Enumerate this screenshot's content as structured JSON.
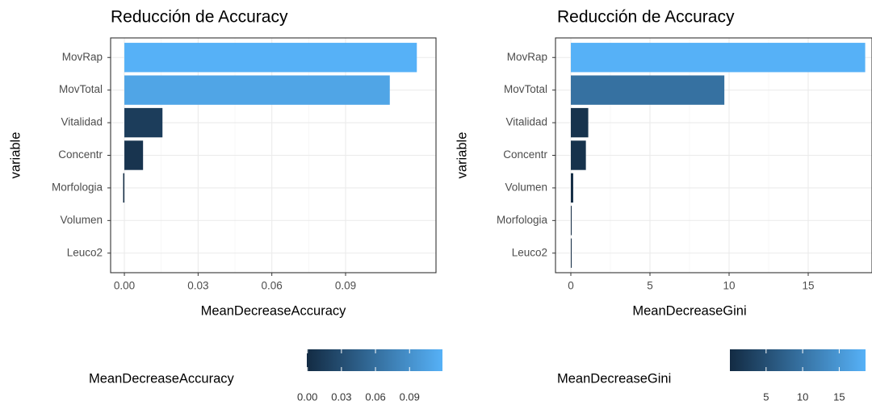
{
  "chart_data": [
    {
      "type": "bar",
      "orientation": "horizontal",
      "title": "Reducción de Accuracy",
      "y_label": "variable",
      "x_label": "MeanDecreaseAccuracy",
      "categories": [
        "MovRap",
        "MovTotal",
        "Vitalidad",
        "Concentr",
        "Morfologia",
        "Volumen",
        "Leuco2"
      ],
      "values": [
        0.119,
        0.108,
        0.0155,
        0.0076,
        -0.0005,
        0,
        0
      ],
      "colorscale": [
        "#132B43",
        "#56B1F7"
      ],
      "xlim": [
        -0.0056,
        0.1268
      ],
      "xticks": [
        {
          "value": 0,
          "label": "0.00"
        },
        0.03,
        0.06,
        0.09
      ],
      "grid": true,
      "legend_title": "MeanDecreaseAccuracy",
      "legend_ticks": [
        {
          "value": 0,
          "label": "0.00"
        },
        0.03,
        0.06,
        0.09
      ]
    },
    {
      "type": "bar",
      "orientation": "horizontal",
      "title": "Reducción de Accuracy",
      "y_label": "variable",
      "x_label": "MeanDecreaseGini",
      "categories": [
        "MovRap",
        "MovTotal",
        "Vitalidad",
        "Concentr",
        "Volumen",
        "Morfologia",
        "Leuco2"
      ],
      "values": [
        18.6,
        9.7,
        1.1,
        0.95,
        0.15,
        0.05,
        0.05
      ],
      "colorscale": [
        "#132B43",
        "#56B1F7"
      ],
      "xlim": [
        -0.97,
        19.03
      ],
      "xticks": [
        0,
        5,
        10,
        15
      ],
      "grid": true,
      "legend_title": "MeanDecreaseGini",
      "legend_ticks": [
        5,
        10,
        15
      ]
    }
  ]
}
